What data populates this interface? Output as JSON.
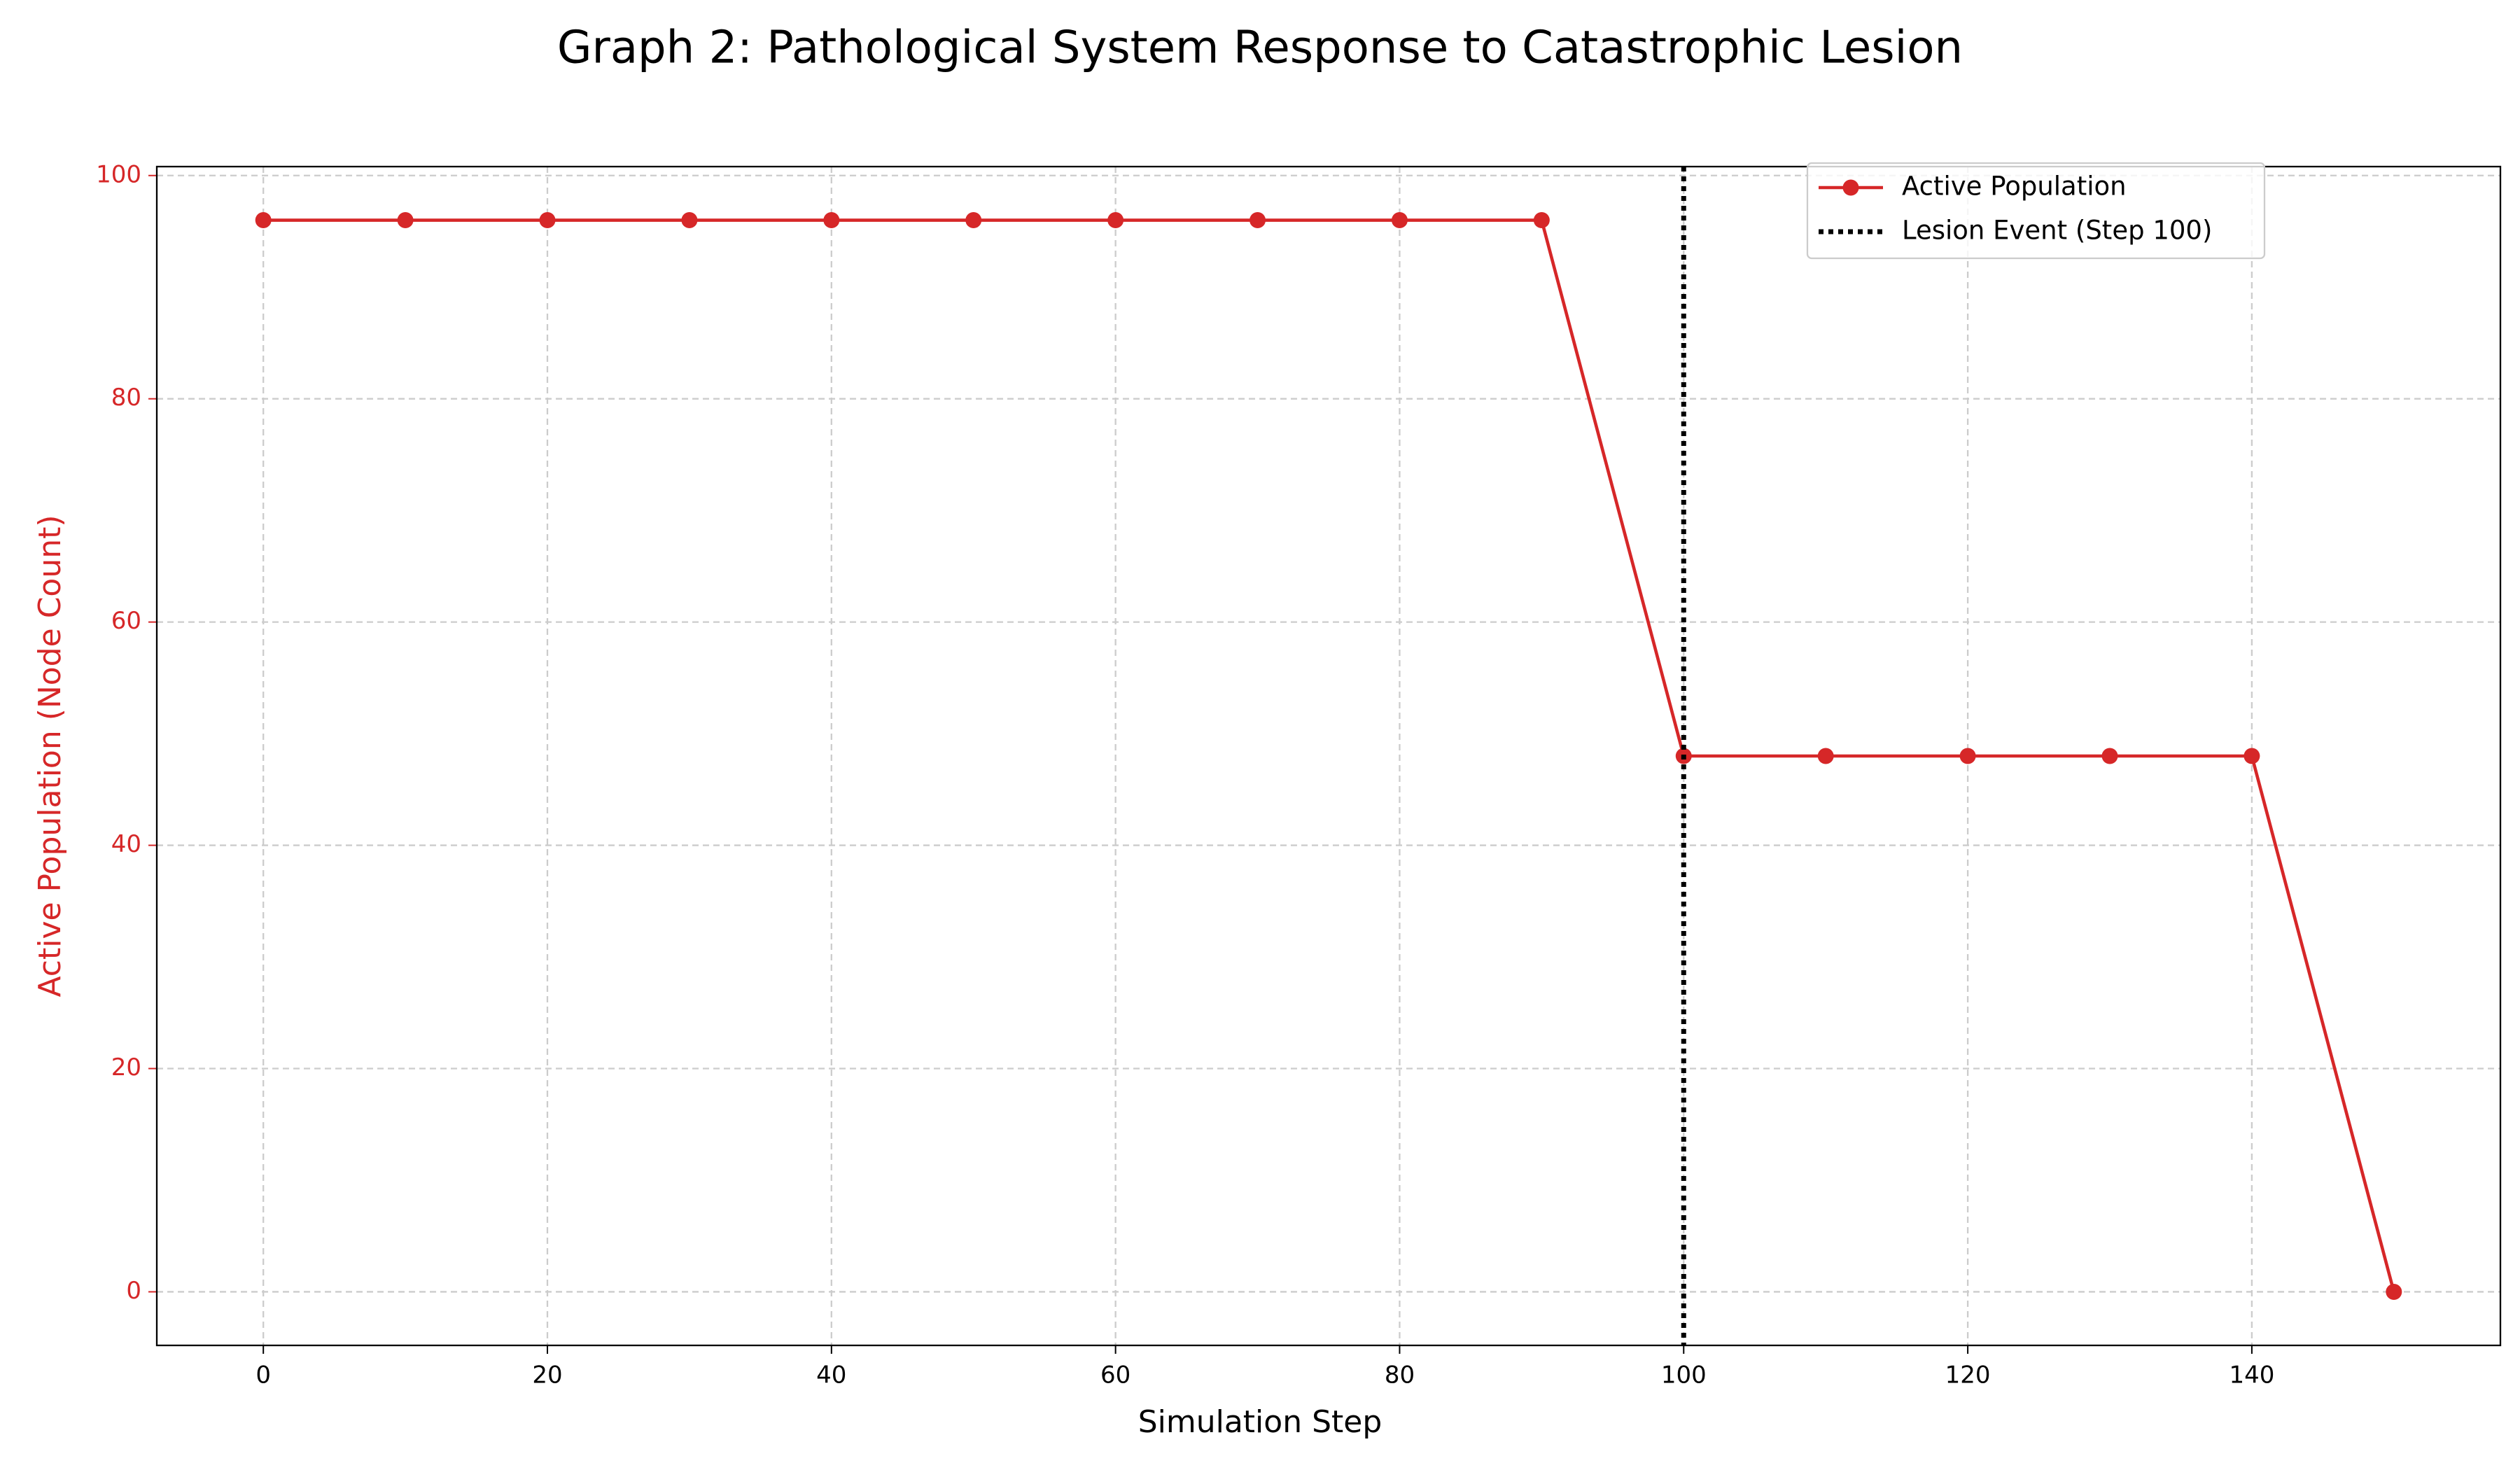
{
  "chart_data": {
    "type": "line",
    "title": "Graph 2: Pathological System Response to Catastrophic Lesion",
    "x_label": "Simulation Step",
    "y_label": "Active Population (Node Count)",
    "x": [
      0,
      10,
      20,
      30,
      40,
      50,
      60,
      70,
      80,
      90,
      100,
      110,
      120,
      130,
      140,
      150
    ],
    "series": [
      {
        "name": "Active Population",
        "color": "#d62728",
        "values": [
          96,
          96,
          96,
          96,
          96,
          96,
          96,
          96,
          96,
          96,
          48,
          48,
          48,
          48,
          48,
          0
        ]
      }
    ],
    "vline": {
      "x": 100,
      "name": "Lesion Event (Step 100)",
      "color": "#000000"
    },
    "xlim": [
      -7.5,
      157.5
    ],
    "xticks": [
      0,
      20,
      40,
      60,
      80,
      100,
      120,
      140
    ],
    "ylim": [
      -4.8,
      100.8
    ],
    "yticks": [
      0,
      20,
      40,
      60,
      80,
      100
    ],
    "y_axis_color": "#d62728",
    "grid": true,
    "legend": "upper right"
  }
}
